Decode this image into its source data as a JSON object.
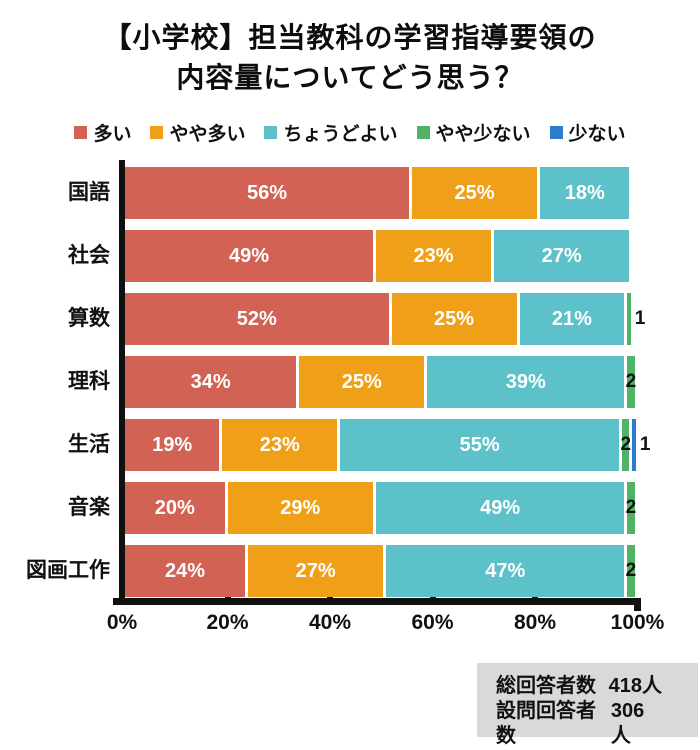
{
  "title": {
    "line1": "【小学校】担当教科の学習指導要領の",
    "line2": "内容量についてどう思う？"
  },
  "chart_data": {
    "type": "bar",
    "orientation": "horizontal",
    "stacked": true,
    "title": "【小学校】担当教科の学習指導要領の内容量についてどう思う？",
    "categories": [
      "国語",
      "社会",
      "算数",
      "理科",
      "生活",
      "音楽",
      "図画工作"
    ],
    "series": [
      {
        "name": "多い",
        "color": "#D26253",
        "values": [
          56,
          49,
          52,
          34,
          19,
          20,
          24
        ]
      },
      {
        "name": "やや多い",
        "color": "#EFA018",
        "values": [
          25,
          23,
          25,
          25,
          23,
          29,
          27
        ]
      },
      {
        "name": "ちょうどよい",
        "color": "#5DC1C9",
        "values": [
          18,
          27,
          21,
          39,
          55,
          49,
          47
        ]
      },
      {
        "name": "やや少ない",
        "color": "#4FB466",
        "values": [
          0,
          0,
          1,
          2,
          2,
          2,
          2
        ]
      },
      {
        "name": "少ない",
        "color": "#2E7CD0",
        "values": [
          0,
          0,
          0,
          0,
          1,
          0,
          0
        ]
      }
    ],
    "value_suffix": "%",
    "xlim": [
      0,
      100
    ],
    "x_ticks": [
      {
        "pct": 0,
        "label": "0%"
      },
      {
        "pct": 20,
        "label": "20%"
      },
      {
        "pct": 40,
        "label": "40%"
      },
      {
        "pct": 60,
        "label": "60%"
      },
      {
        "pct": 80,
        "label": "80%"
      },
      {
        "pct": 100,
        "label": "100%"
      }
    ],
    "legend_position": "top",
    "grid": false,
    "axis_color": "#111111",
    "background": "#ffffff"
  },
  "footer": {
    "rows": [
      {
        "label": "総回答者数",
        "value": "418人"
      },
      {
        "label": "設問回答者数",
        "value": "306人"
      }
    ]
  }
}
